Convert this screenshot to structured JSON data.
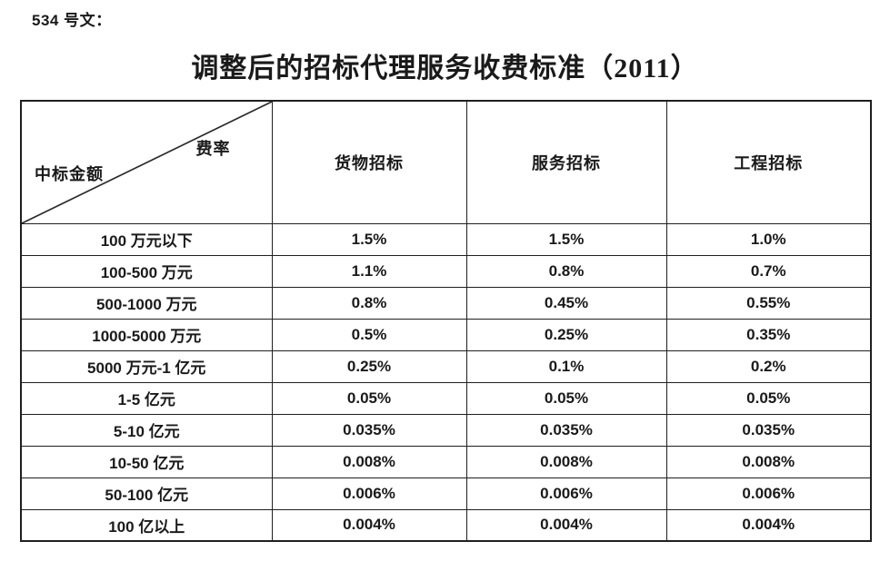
{
  "doc": {
    "label": "534 号文：",
    "title": "调整后的招标代理服务收费标准（2011）"
  },
  "table": {
    "corner": {
      "top_right": "费率",
      "bottom_left": "中标金额"
    },
    "columns": [
      "货物招标",
      "服务招标",
      "工程招标"
    ],
    "rows": [
      {
        "label": "100 万元以下",
        "values": [
          "1.5%",
          "1.5%",
          "1.0%"
        ]
      },
      {
        "label": "100-500 万元",
        "values": [
          "1.1%",
          "0.8%",
          "0.7%"
        ]
      },
      {
        "label": "500-1000 万元",
        "values": [
          "0.8%",
          "0.45%",
          "0.55%"
        ]
      },
      {
        "label": "1000-5000 万元",
        "values": [
          "0.5%",
          "0.25%",
          "0.35%"
        ]
      },
      {
        "label": "5000 万元-1 亿元",
        "values": [
          "0.25%",
          "0.1%",
          "0.2%"
        ]
      },
      {
        "label": "1-5 亿元",
        "values": [
          "0.05%",
          "0.05%",
          "0.05%"
        ]
      },
      {
        "label": "5-10 亿元",
        "values": [
          "0.035%",
          "0.035%",
          "0.035%"
        ]
      },
      {
        "label": "10-50 亿元",
        "values": [
          "0.008%",
          "0.008%",
          "0.008%"
        ]
      },
      {
        "label": "50-100 亿元",
        "values": [
          "0.006%",
          "0.006%",
          "0.006%"
        ]
      },
      {
        "label": "100 亿以上",
        "values": [
          "0.004%",
          "0.004%",
          "0.004%"
        ]
      }
    ]
  }
}
